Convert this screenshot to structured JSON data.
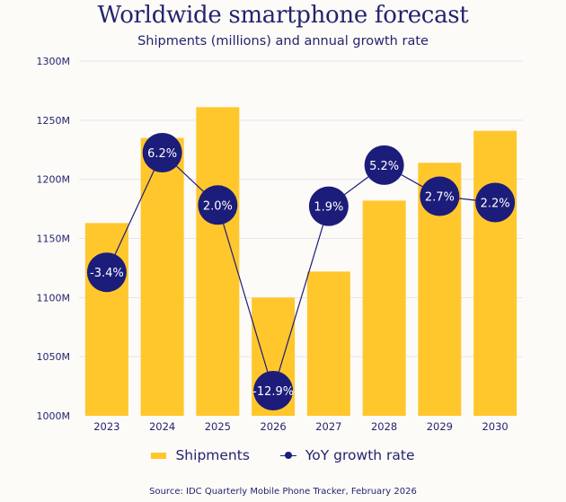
{
  "chart_data": {
    "type": "bar",
    "title": "Worldwide smartphone forecast",
    "subtitle": "Shipments (millions) and annual growth rate",
    "xlabel": "",
    "ylabel": "",
    "categories": [
      "2023",
      "2024",
      "2025",
      "2026",
      "2027",
      "2028",
      "2029",
      "2030"
    ],
    "ylim": [
      1000,
      1300
    ],
    "yticks": [
      1000,
      1050,
      1100,
      1150,
      1200,
      1250,
      1300
    ],
    "ytick_labels": [
      "1000M",
      "1050M",
      "1100M",
      "1150M",
      "1200M",
      "1250M",
      "1300M"
    ],
    "grid": true,
    "series": [
      {
        "name": "Shipments",
        "type": "bar",
        "color": "#ffc72c",
        "values": [
          1163,
          1235,
          1261,
          1100,
          1122,
          1182,
          1214,
          1241
        ]
      },
      {
        "name": "YoY growth rate",
        "type": "line",
        "axis": "secondary",
        "color": "#1c1c7a",
        "values": [
          -3.4,
          6.2,
          2.0,
          -12.9,
          1.9,
          5.2,
          2.7,
          2.2
        ],
        "labels": [
          "-3.4%",
          "6.2%",
          "2.0%",
          "-12.9%",
          "1.9%",
          "5.2%",
          "2.7%",
          "2.2%"
        ]
      }
    ],
    "legend": {
      "position": "bottom",
      "entries": [
        "Shipments",
        "YoY growth rate"
      ]
    },
    "source": "Source:  IDC Quarterly Mobile Phone Tracker, February 2026"
  }
}
